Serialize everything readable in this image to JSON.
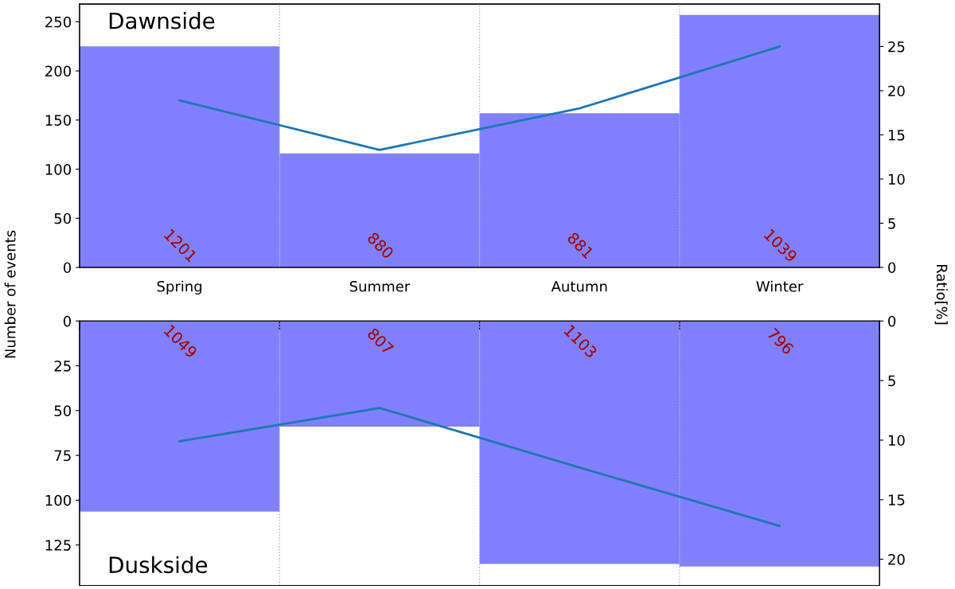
{
  "chart_data": [
    {
      "type": "bar",
      "title": "Dawnside",
      "ylabel": "Number of events",
      "y2label": "Ratio[%]",
      "categories": [
        "Spring",
        "Summer",
        "Autumn",
        "Winter"
      ],
      "grid": "x",
      "ylim": [
        0,
        268
      ],
      "yticks": [
        0,
        50,
        100,
        150,
        200,
        250
      ],
      "y2lim": [
        0,
        29.8
      ],
      "y2ticks": [
        0,
        5,
        10,
        15,
        20,
        25
      ],
      "series": [
        {
          "color": "#8080ff",
          "values": [
            225,
            116,
            157,
            257
          ]
        },
        {
          "type": "line",
          "axis": "y2",
          "color": "#1f77b4",
          "values": [
            18.9,
            13.3,
            18.0,
            25.0
          ]
        }
      ],
      "annotations": [
        "1201",
        "880",
        "881",
        "1039"
      ]
    },
    {
      "type": "bar",
      "title": "Duskside",
      "categories": [
        null,
        null,
        null,
        null
      ],
      "grid": "x",
      "ylim": [
        147.6,
        0
      ],
      "yticks": [
        0,
        25,
        50,
        75,
        100,
        125
      ],
      "y2lim": [
        22.2,
        0
      ],
      "y2ticks": [
        0,
        5,
        10,
        15,
        20
      ],
      "series": [
        {
          "color": "#8080ff",
          "values": [
            106.4,
            59,
            135.6,
            137
          ]
        },
        {
          "type": "line",
          "axis": "y2",
          "color": "#1f77b4",
          "values": [
            10.1,
            7.3,
            12.3,
            17.2
          ]
        }
      ],
      "annotations": [
        "1049",
        "807",
        "1103",
        "796"
      ]
    }
  ]
}
